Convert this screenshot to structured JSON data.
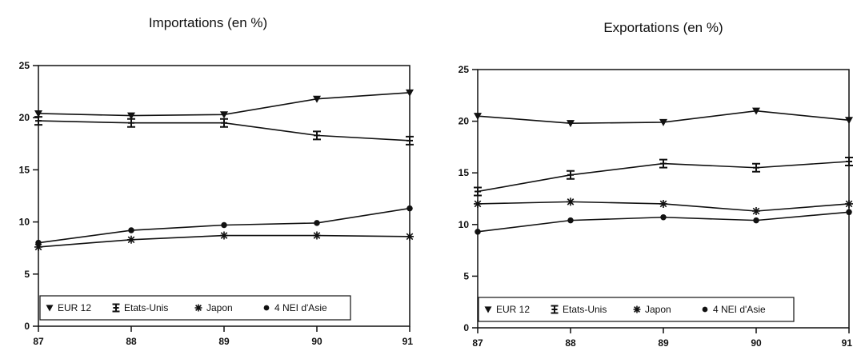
{
  "chart_data": [
    {
      "type": "line",
      "title": "Importations (en %)",
      "xlabel": "",
      "ylabel": "",
      "x": [
        "87",
        "88",
        "89",
        "90",
        "91"
      ],
      "ylim": [
        0,
        25
      ],
      "yticks": [
        "0",
        "5",
        "10",
        "15",
        "20",
        "25"
      ],
      "grid": false,
      "legend_position": "bottom-left",
      "series": [
        {
          "name": "EUR 12",
          "marker": "triangle-down",
          "values": [
            20.4,
            20.2,
            20.3,
            21.8,
            22.4
          ]
        },
        {
          "name": "Etats-Unis",
          "marker": "i-beam",
          "values": [
            19.7,
            19.5,
            19.5,
            18.3,
            17.8
          ]
        },
        {
          "name": "Japon",
          "marker": "asterisk",
          "values": [
            7.6,
            8.3,
            8.7,
            8.7,
            8.6
          ]
        },
        {
          "name": "4 NEI d'Asie",
          "marker": "circle",
          "values": [
            8.0,
            9.2,
            9.7,
            9.9,
            11.3
          ]
        }
      ]
    },
    {
      "type": "line",
      "title": "Exportations (en %)",
      "xlabel": "",
      "ylabel": "",
      "x": [
        "87",
        "88",
        "89",
        "90",
        "91"
      ],
      "ylim": [
        0,
        25
      ],
      "yticks": [
        "0",
        "5",
        "10",
        "15",
        "20",
        "25"
      ],
      "grid": false,
      "legend_position": "bottom-left",
      "series": [
        {
          "name": "EUR 12",
          "marker": "triangle-down",
          "values": [
            20.5,
            19.8,
            19.9,
            21.0,
            20.1
          ]
        },
        {
          "name": "Etats-Unis",
          "marker": "i-beam",
          "values": [
            13.2,
            14.8,
            15.9,
            15.5,
            16.1
          ]
        },
        {
          "name": "Japon",
          "marker": "asterisk",
          "values": [
            12.0,
            12.2,
            12.0,
            11.3,
            12.0
          ]
        },
        {
          "name": "4 NEI d'Asie",
          "marker": "circle",
          "values": [
            9.3,
            10.4,
            10.7,
            10.4,
            11.2
          ]
        }
      ]
    }
  ]
}
